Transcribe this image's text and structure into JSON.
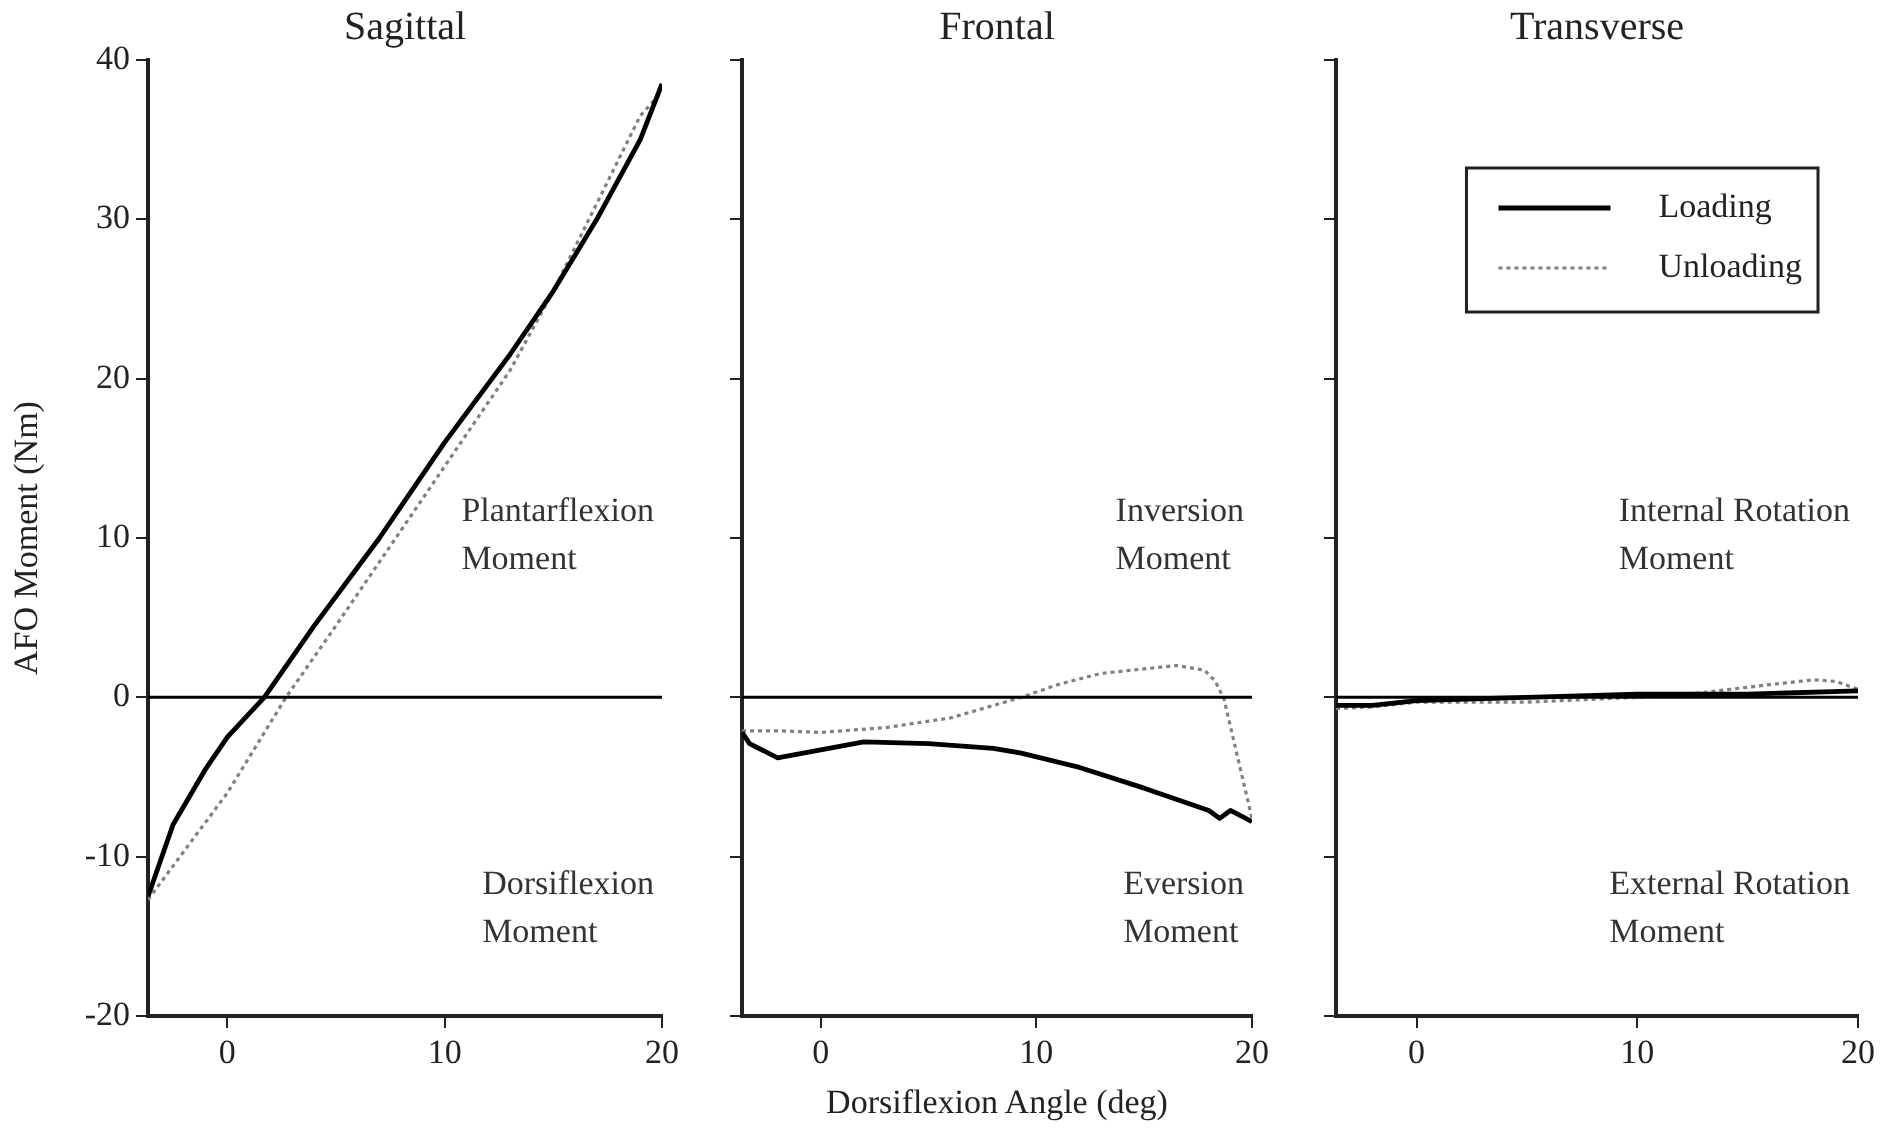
{
  "chart_data": [
    {
      "type": "line",
      "title": "Sagittal",
      "ylabel": "AFO Moment (Nm)",
      "xlim": [
        -3.65,
        20
      ],
      "xticks": [
        0,
        10,
        20
      ],
      "ylim": [
        -20,
        40
      ],
      "yticks": [
        -20,
        -10,
        0,
        10,
        20,
        30,
        40
      ],
      "grid": false,
      "legend": false,
      "marker": "none",
      "ref_lines": [
        {
          "axis": "y",
          "value": 0,
          "color": "#000000"
        }
      ],
      "annotations": [
        "Plantarflexion\nMoment",
        "Dorsiflexion\nMoment"
      ],
      "series": [
        {
          "color": "#000000",
          "line_style": "solid",
          "x": [
            -3.65,
            -2.5,
            -1,
            0,
            1.7,
            4,
            7,
            10,
            13,
            15,
            17,
            19,
            20
          ],
          "values": [
            -12.5,
            -8,
            -4.5,
            -2.5,
            0,
            4.5,
            10,
            16,
            21.5,
            25.5,
            30,
            35,
            38.5
          ]
        },
        {
          "color": "#808080",
          "line_style": "dotted",
          "x": [
            -3.65,
            0,
            2.7,
            5,
            8,
            11,
            13,
            15,
            17,
            19,
            20
          ],
          "values": [
            -12.7,
            -6,
            0,
            4.5,
            10.5,
            16.5,
            20.5,
            25.5,
            31,
            36.5,
            38
          ]
        }
      ]
    },
    {
      "type": "line",
      "title": "Frontal",
      "xlabel": "Dorsiflexion Angle (deg)",
      "xlim": [
        -3.65,
        20
      ],
      "xticks": [
        0,
        10,
        20
      ],
      "ylim": [
        -20,
        40
      ],
      "yticks": [
        {
          "value": -20,
          "label": null
        },
        {
          "value": -10,
          "label": null
        },
        {
          "value": 0,
          "label": null
        },
        {
          "value": 10,
          "label": null
        },
        {
          "value": 20,
          "label": null
        },
        {
          "value": 30,
          "label": null
        },
        {
          "value": 40,
          "label": null
        }
      ],
      "tick_labels": "x",
      "grid": false,
      "legend": false,
      "marker": "none",
      "ref_lines": [
        {
          "axis": "y",
          "value": 0,
          "color": "#000000"
        }
      ],
      "annotations": [
        "Inversion\nMoment",
        "Eversion\nMoment"
      ],
      "series": [
        {
          "color": "#000000",
          "line_style": "solid",
          "x": [
            -3.65,
            -3.3,
            -2,
            0,
            2,
            5,
            8,
            9.3,
            12,
            15,
            18,
            18.5,
            19,
            20
          ],
          "values": [
            -2.2,
            -2.9,
            -3.8,
            -3.3,
            -2.8,
            -2.9,
            -3.2,
            -3.5,
            -4.4,
            -5.7,
            -7.1,
            -7.6,
            -7.1,
            -7.8
          ]
        },
        {
          "color": "#808080",
          "line_style": "dotted",
          "x": [
            -3.65,
            -2,
            0,
            3,
            6,
            9.3,
            11,
            13,
            16.5,
            17.8,
            18.3,
            18.7,
            20
          ],
          "values": [
            -2.1,
            -2.1,
            -2.2,
            -1.9,
            -1.3,
            0,
            0.8,
            1.5,
            2,
            1.7,
            1,
            -0.1,
            -7.6
          ]
        }
      ]
    },
    {
      "type": "line",
      "title": "Transverse",
      "xlim": [
        -3.65,
        20
      ],
      "xticks": [
        0,
        10,
        20
      ],
      "ylim": [
        -20,
        40
      ],
      "yticks": [
        {
          "value": -20,
          "label": null
        },
        {
          "value": -10,
          "label": null
        },
        {
          "value": 0,
          "label": null
        },
        {
          "value": 10,
          "label": null
        },
        {
          "value": 20,
          "label": null
        },
        {
          "value": 30,
          "label": null
        },
        {
          "value": 40,
          "label": null
        }
      ],
      "tick_labels": "x",
      "grid": false,
      "legend": "top right",
      "marker": "none",
      "ref_lines": [
        {
          "axis": "y",
          "value": 0,
          "color": "#000000"
        }
      ],
      "annotations": [
        "Internal Rotation\nMoment",
        "External Rotation\nMoment"
      ],
      "series": [
        {
          "name": "Loading",
          "color": "#000000",
          "line_style": "solid",
          "x": [
            -3.65,
            -2,
            0,
            5,
            10,
            15,
            20
          ],
          "values": [
            -0.5,
            -0.5,
            -0.2,
            0,
            0.2,
            0.2,
            0.4
          ]
        },
        {
          "name": "Unloading",
          "color": "#808080",
          "line_style": "dotted",
          "x": [
            -3.65,
            -2,
            0,
            5,
            10,
            13,
            16,
            18,
            19,
            20
          ],
          "values": [
            -0.7,
            -0.6,
            -0.3,
            -0.3,
            0,
            0.3,
            0.8,
            1.1,
            1,
            0.5
          ]
        }
      ]
    }
  ]
}
